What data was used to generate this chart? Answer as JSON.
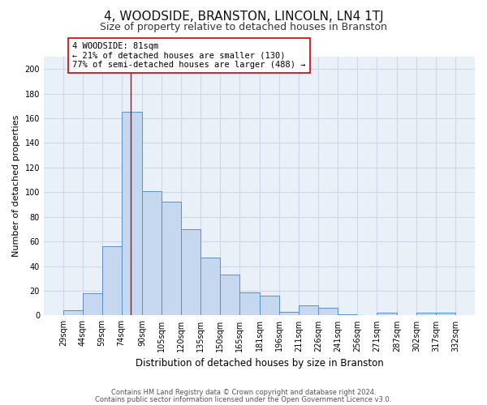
{
  "title": "4, WOODSIDE, BRANSTON, LINCOLN, LN4 1TJ",
  "subtitle": "Size of property relative to detached houses in Branston",
  "xlabel": "Distribution of detached houses by size in Branston",
  "ylabel": "Number of detached properties",
  "bar_left_edges": [
    29,
    44,
    59,
    74,
    90,
    105,
    120,
    135,
    150,
    165,
    181,
    196,
    211,
    226,
    241,
    256,
    271,
    287,
    302,
    317
  ],
  "bar_widths": [
    15,
    15,
    15,
    16,
    15,
    15,
    15,
    15,
    15,
    16,
    15,
    15,
    15,
    15,
    15,
    15,
    16,
    15,
    15,
    15
  ],
  "bar_heights": [
    4,
    18,
    56,
    165,
    101,
    92,
    70,
    47,
    33,
    19,
    16,
    3,
    8,
    6,
    1,
    0,
    2,
    0,
    2,
    2
  ],
  "bar_color": "#c5d8f0",
  "bar_edgecolor": "#5b8fc9",
  "ylim": [
    0,
    210
  ],
  "yticks": [
    0,
    20,
    40,
    60,
    80,
    100,
    120,
    140,
    160,
    180,
    200
  ],
  "xtick_labels": [
    "29sqm",
    "44sqm",
    "59sqm",
    "74sqm",
    "90sqm",
    "105sqm",
    "120sqm",
    "135sqm",
    "150sqm",
    "165sqm",
    "181sqm",
    "196sqm",
    "211sqm",
    "226sqm",
    "241sqm",
    "256sqm",
    "271sqm",
    "287sqm",
    "302sqm",
    "317sqm",
    "332sqm"
  ],
  "xtick_positions": [
    29,
    44,
    59,
    74,
    90,
    105,
    120,
    135,
    150,
    165,
    181,
    196,
    211,
    226,
    241,
    256,
    271,
    287,
    302,
    317,
    332
  ],
  "vline_x": 81,
  "vline_color": "#cc0000",
  "annotation_line1": "4 WOODSIDE: 81sqm",
  "annotation_line2": "← 21% of detached houses are smaller (130)",
  "annotation_line3": "77% of semi-detached houses are larger (488) →",
  "annotation_box_color": "#ffffff",
  "annotation_box_edgecolor": "#cc0000",
  "annotation_fontsize": 7.5,
  "footer1": "Contains HM Land Registry data © Crown copyright and database right 2024.",
  "footer2": "Contains public sector information licensed under the Open Government Licence v3.0.",
  "grid_color": "#d0d8e8",
  "bg_color": "#eaf0f8",
  "title_fontsize": 11,
  "subtitle_fontsize": 9,
  "xlabel_fontsize": 8.5,
  "ylabel_fontsize": 8,
  "tick_fontsize": 7,
  "footer_fontsize": 6
}
